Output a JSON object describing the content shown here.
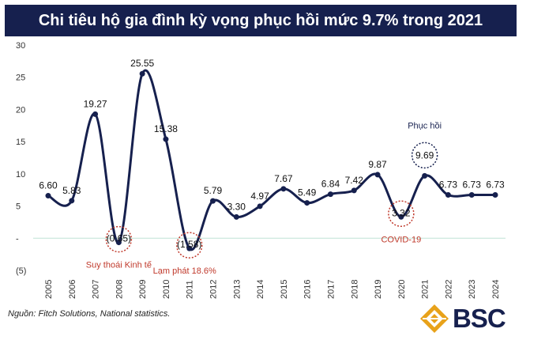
{
  "title": "Chi tiêu hộ gia đình kỳ vọng phục hồi mức 9.7% trong 2021",
  "source": "Nguồn: Fitch Solutions, National statistics.",
  "logo_text": "BSC",
  "colors": {
    "title_bg": "#16204e",
    "line": "#16204e",
    "annotation": "#c0392b",
    "recovery_marker": "#16204e",
    "logo_gold": "#e8a21a",
    "logo_navy": "#16204e"
  },
  "chart_data": {
    "type": "line",
    "categories": [
      "2005",
      "2006",
      "2007",
      "2008",
      "2009",
      "2010",
      "2011",
      "2012",
      "2013",
      "2014",
      "2015",
      "2016",
      "2017",
      "2018",
      "2019",
      "2020",
      "2021",
      "2022",
      "2023",
      "2024"
    ],
    "values": [
      6.6,
      5.83,
      19.27,
      -0.65,
      25.55,
      15.38,
      -1.58,
      5.79,
      3.3,
      4.97,
      7.67,
      5.49,
      6.84,
      7.42,
      9.87,
      3.32,
      9.69,
      6.73,
      6.73,
      6.73
    ],
    "value_labels": [
      "6.60",
      "5.83",
      "19.27",
      "(0.65)",
      "25.55",
      "15.38",
      "(1.58)",
      "5.79",
      "3.30",
      "4.97",
      "7.67",
      "5.49",
      "6.84",
      "7.42",
      "9.87",
      "3.32",
      "9.69",
      "6.73",
      "6.73",
      "6.73"
    ],
    "ylim": [
      -5,
      30
    ],
    "yticks": [
      {
        "value": 30,
        "label": "30"
      },
      {
        "value": 25,
        "label": "25"
      },
      {
        "value": 20,
        "label": "20"
      },
      {
        "value": 15,
        "label": "15"
      },
      {
        "value": 10,
        "label": "10"
      },
      {
        "value": 5,
        "label": "5"
      },
      {
        "value": 0,
        "label": "-"
      },
      {
        "value": -5,
        "label": "(5)"
      }
    ],
    "annotations": [
      {
        "category": "2008",
        "text": "Suy thoái Kinh tế",
        "style": "red"
      },
      {
        "category": "2011",
        "text": "Lạm phát 18.6%",
        "style": "red"
      },
      {
        "category": "2020",
        "text": "COVID-19",
        "style": "red"
      },
      {
        "category": "2021",
        "text": "Phục hồi",
        "style": "navy"
      }
    ],
    "xlabel": "",
    "ylabel": "",
    "grid": false
  }
}
